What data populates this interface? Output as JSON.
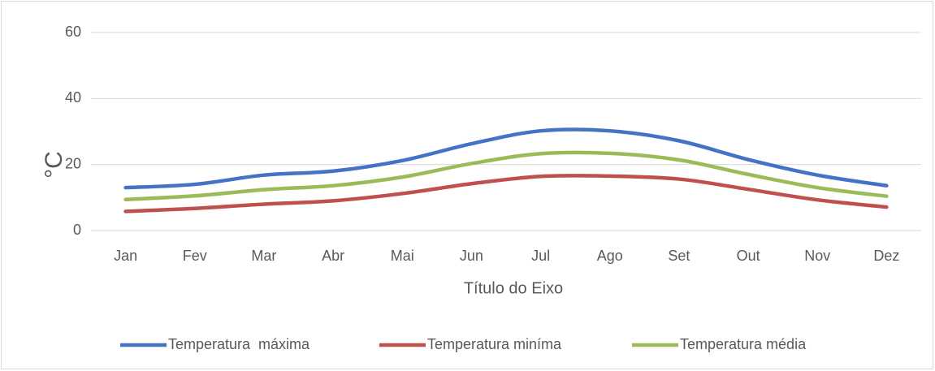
{
  "chart_data": {
    "type": "line",
    "categories": [
      "Jan",
      "Fev",
      "Mar",
      "Abr",
      "Mai",
      "Jun",
      "Jul",
      "Ago",
      "Set",
      "Out",
      "Nov",
      "Dez"
    ],
    "series": [
      {
        "name": "Temperatura  máxima",
        "color": "#4472c4",
        "values": [
          13.0,
          14.0,
          16.8,
          18.0,
          21.2,
          26.3,
          30.2,
          30.2,
          27.2,
          21.5,
          16.8,
          13.6
        ]
      },
      {
        "name": "Temperatura miníma",
        "color": "#c0504d",
        "values": [
          5.8,
          6.7,
          8.0,
          9.0,
          11.2,
          14.2,
          16.4,
          16.5,
          15.6,
          12.5,
          9.3,
          7.1
        ]
      },
      {
        "name": "Temperatura média",
        "color": "#9bbb59",
        "values": [
          9.4,
          10.5,
          12.4,
          13.6,
          16.2,
          20.3,
          23.3,
          23.4,
          21.4,
          17.0,
          13.0,
          10.4
        ]
      }
    ],
    "y_label": "°C",
    "x_label": "Título do Eixo",
    "ylim": [
      0,
      60
    ],
    "yticks": [
      0,
      20,
      40,
      60
    ],
    "grid": true,
    "legend": "bottom"
  }
}
